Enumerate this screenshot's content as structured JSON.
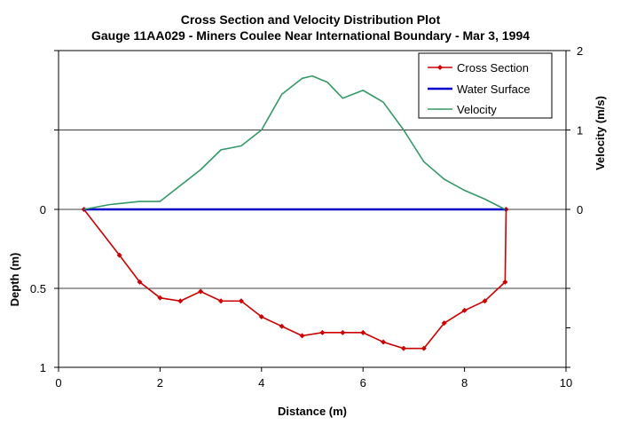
{
  "chart_data": {
    "type": "line",
    "title": "Cross Section and Velocity Distribution Plot",
    "subtitle": "Gauge 11AA029 - Miners Coulee Near International Boundary - Mar 3, 1994",
    "xlabel": "Distance (m)",
    "ylabel_left": "Depth (m)",
    "ylabel_right": "Velocity (m/s)",
    "xlim": [
      0,
      10
    ],
    "xticks": [
      "0",
      "2",
      "4",
      "6",
      "8",
      "10"
    ],
    "depth_ticks": [
      "0",
      "0.5",
      "1"
    ],
    "velocity_ticks": [
      "0",
      "1",
      "2"
    ],
    "legend_position": "top-right",
    "series": [
      {
        "name": "Cross Section",
        "color": "#cc0000",
        "x": [
          0.5,
          1.2,
          1.6,
          2.0,
          2.4,
          2.8,
          3.2,
          3.6,
          4.0,
          4.4,
          4.8,
          5.2,
          5.6,
          6.0,
          6.4,
          6.8,
          7.2,
          7.6,
          8.0,
          8.4,
          8.8,
          8.82
        ],
        "depth": [
          0.0,
          0.29,
          0.46,
          0.56,
          0.58,
          0.52,
          0.58,
          0.58,
          0.68,
          0.74,
          0.8,
          0.78,
          0.78,
          0.78,
          0.84,
          0.88,
          0.88,
          0.72,
          0.64,
          0.58,
          0.46,
          0.0
        ]
      },
      {
        "name": "Water Surface",
        "color": "#0000cc",
        "x": [
          0.5,
          8.82
        ],
        "depth": [
          0.0,
          0.0
        ]
      },
      {
        "name": "Velocity",
        "color": "#339966",
        "x": [
          0.5,
          1.0,
          1.6,
          2.0,
          2.4,
          2.8,
          3.2,
          3.6,
          4.0,
          4.4,
          4.8,
          5.0,
          5.3,
          5.6,
          6.0,
          6.4,
          6.8,
          7.2,
          7.6,
          8.0,
          8.4,
          8.8
        ],
        "velocity": [
          0.0,
          0.06,
          0.1,
          0.1,
          0.3,
          0.5,
          0.75,
          0.8,
          1.0,
          1.45,
          1.65,
          1.68,
          1.6,
          1.4,
          1.5,
          1.35,
          1.0,
          0.6,
          0.38,
          0.24,
          0.13,
          0.0
        ]
      }
    ]
  }
}
